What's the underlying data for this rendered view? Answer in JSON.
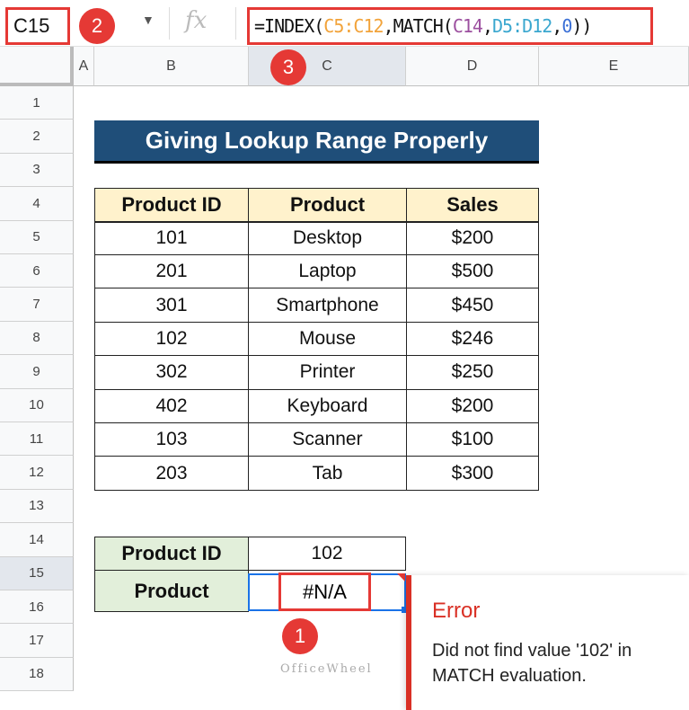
{
  "formula_bar": {
    "name_box": "C15",
    "fx_icon": "fx",
    "formula_parts": [
      {
        "t": "=INDEX(",
        "c": ""
      },
      {
        "t": "C5:C12",
        "c": "c1"
      },
      {
        "t": ",MATCH(",
        "c": ""
      },
      {
        "t": "C14",
        "c": "c2"
      },
      {
        "t": ",",
        "c": ""
      },
      {
        "t": "D5:D12",
        "c": "c3"
      },
      {
        "t": ",",
        "c": ""
      },
      {
        "t": "0",
        "c": "c4"
      },
      {
        "t": "))",
        "c": ""
      }
    ]
  },
  "badges": [
    "1",
    "2",
    "3"
  ],
  "columns": [
    "A",
    "B",
    "C",
    "D",
    "E"
  ],
  "rows": [
    "1",
    "2",
    "3",
    "4",
    "5",
    "6",
    "7",
    "8",
    "9",
    "10",
    "11",
    "12",
    "13",
    "14",
    "15",
    "16",
    "17",
    "18"
  ],
  "title": "Giving Lookup Range Properly",
  "table": {
    "headers": [
      "Product ID",
      "Product",
      "Sales"
    ],
    "rows": [
      [
        "101",
        "Desktop",
        "$200"
      ],
      [
        "201",
        "Laptop",
        "$500"
      ],
      [
        "301",
        "Smartphone",
        "$450"
      ],
      [
        "102",
        "Mouse",
        "$246"
      ],
      [
        "302",
        "Printer",
        "$250"
      ],
      [
        "402",
        "Keyboard",
        "$200"
      ],
      [
        "103",
        "Scanner",
        "$100"
      ],
      [
        "203",
        "Tab",
        "$300"
      ]
    ]
  },
  "lookup": {
    "id_label": "Product ID",
    "id_value": "102",
    "product_label": "Product",
    "product_value": "#N/A"
  },
  "error_popup": {
    "title": "Error",
    "message": "Did not find value '102' in MATCH evaluation."
  },
  "watermark": "OfficeWheel"
}
